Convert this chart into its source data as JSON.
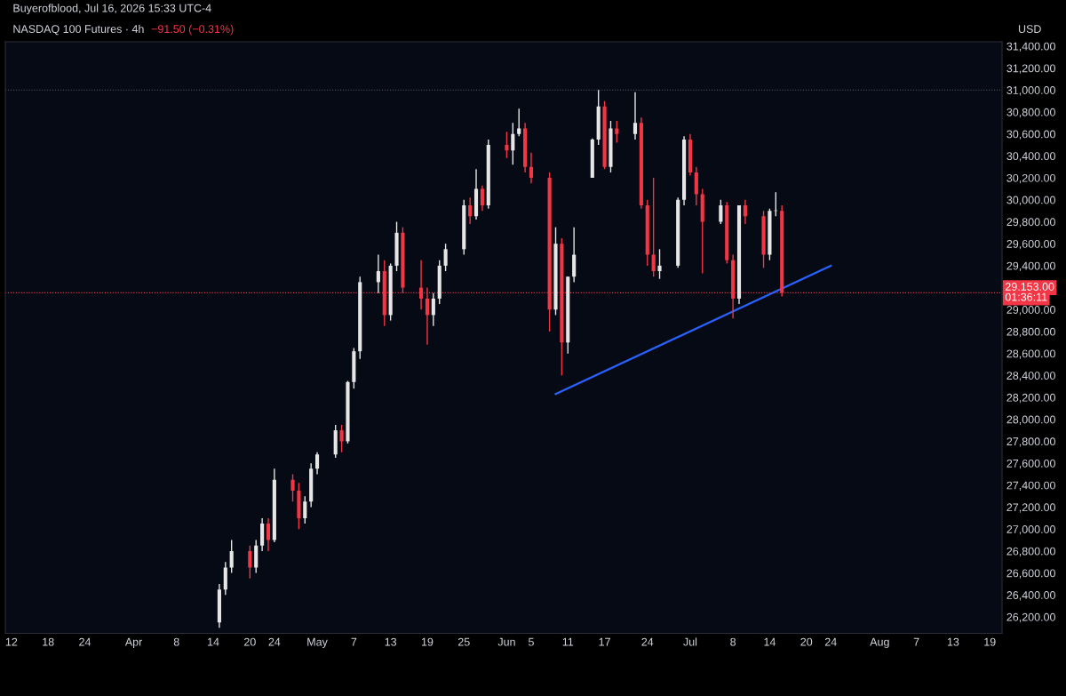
{
  "chart_data": {
    "type": "candlestick",
    "title": "NASDAQ 100 Futures · 4h",
    "subtitle": "Buyerofblood, Jul 16, 2026 15:33 UTC-4",
    "annotations": [
      "−91.50 (−0.31%)",
      "USD",
      "01:36:11"
    ],
    "x": [
      "2026-04-15",
      "2026-04-16",
      "2026-04-17",
      "2026-04-20",
      "2026-04-21",
      "2026-04-22",
      "2026-04-23",
      "2026-04-24",
      "2026-04-27",
      "2026-04-28",
      "2026-04-29",
      "2026-04-30",
      "2026-05-01",
      "2026-05-04",
      "2026-05-05",
      "2026-05-06",
      "2026-05-07",
      "2026-05-08",
      "2026-05-11",
      "2026-05-12",
      "2026-05-13",
      "2026-05-14",
      "2026-05-15",
      "2026-05-18",
      "2026-05-19",
      "2026-05-20",
      "2026-05-21",
      "2026-05-22",
      "2026-05-25",
      "2026-05-26",
      "2026-05-27",
      "2026-05-28",
      "2026-05-29",
      "2026-06-01",
      "2026-06-02",
      "2026-06-03",
      "2026-06-04",
      "2026-06-05",
      "2026-06-08",
      "2026-06-09",
      "2026-06-10",
      "2026-06-11",
      "2026-06-12",
      "2026-06-15",
      "2026-06-16",
      "2026-06-17",
      "2026-06-18",
      "2026-06-19",
      "2026-06-22",
      "2026-06-23",
      "2026-06-24",
      "2026-06-25",
      "2026-06-26",
      "2026-06-29",
      "2026-06-30",
      "2026-07-01",
      "2026-07-02",
      "2026-07-03",
      "2026-07-06",
      "2026-07-07",
      "2026-07-08",
      "2026-07-09",
      "2026-07-10",
      "2026-07-13",
      "2026-07-14",
      "2026-07-15",
      "2026-07-16"
    ],
    "ohlc": [
      [
        26150,
        26500,
        26100,
        26450
      ],
      [
        26450,
        26700,
        26400,
        26650
      ],
      [
        26650,
        26900,
        26600,
        26800
      ],
      [
        26800,
        26850,
        26550,
        26650
      ],
      [
        26650,
        26900,
        26600,
        26850
      ],
      [
        26850,
        27100,
        26800,
        27050
      ],
      [
        27050,
        27100,
        26800,
        26900
      ],
      [
        26900,
        27550,
        26880,
        27450
      ],
      [
        27450,
        27500,
        27250,
        27350
      ],
      [
        27350,
        27420,
        27000,
        27100
      ],
      [
        27100,
        27300,
        27050,
        27250
      ],
      [
        27250,
        27600,
        27200,
        27550
      ],
      [
        27550,
        27700,
        27500,
        27680
      ],
      [
        27680,
        27950,
        27650,
        27900
      ],
      [
        27900,
        27950,
        27700,
        27800
      ],
      [
        27800,
        28350,
        27780,
        28340
      ],
      [
        28340,
        28650,
        28280,
        28620
      ],
      [
        28620,
        29300,
        28550,
        29250
      ],
      [
        29250,
        29500,
        29150,
        29350
      ],
      [
        29350,
        29450,
        28850,
        28950
      ],
      [
        28950,
        29420,
        28900,
        29400
      ],
      [
        29400,
        29800,
        29350,
        29700
      ],
      [
        29700,
        29750,
        29150,
        29200
      ],
      [
        29200,
        29450,
        29000,
        29100
      ],
      [
        29100,
        29200,
        28680,
        28950
      ],
      [
        28950,
        29150,
        28850,
        29100
      ],
      [
        29100,
        29450,
        29050,
        29400
      ],
      [
        29400,
        29600,
        29350,
        29550
      ],
      [
        29550,
        30000,
        29500,
        29950
      ],
      [
        29950,
        30020,
        29780,
        29850
      ],
      [
        29850,
        30280,
        29820,
        30100
      ],
      [
        30100,
        30130,
        29900,
        29950
      ],
      [
        29950,
        30550,
        29920,
        30500
      ],
      [
        30500,
        30620,
        30380,
        30450
      ],
      [
        30450,
        30700,
        30320,
        30600
      ],
      [
        30600,
        30830,
        30580,
        30650
      ],
      [
        30650,
        30700,
        30250,
        30300
      ],
      [
        30300,
        30430,
        30150,
        30200
      ],
      [
        30200,
        30250,
        28800,
        29000
      ],
      [
        29000,
        29750,
        28950,
        29600
      ],
      [
        29600,
        29650,
        28400,
        28700
      ],
      [
        28700,
        29300,
        28600,
        29300
      ],
      [
        29300,
        29750,
        29250,
        29500
      ],
      [
        30200,
        30560,
        30200,
        30550
      ],
      [
        30550,
        31000,
        30500,
        30850
      ],
      [
        30850,
        30900,
        30280,
        30300
      ],
      [
        30300,
        30720,
        30250,
        30650
      ],
      [
        30650,
        30720,
        30520,
        30600
      ],
      [
        30600,
        30980,
        30550,
        30700
      ],
      [
        30700,
        30750,
        29920,
        29950
      ],
      [
        29950,
        30000,
        29400,
        29500
      ],
      [
        29500,
        30200,
        29300,
        29350
      ],
      [
        29350,
        29550,
        29280,
        29400
      ],
      [
        29400,
        30020,
        29380,
        30000
      ],
      [
        30000,
        30580,
        29950,
        30550
      ],
      [
        30550,
        30600,
        30220,
        30250
      ],
      [
        30250,
        30300,
        29950,
        30050
      ],
      [
        30050,
        30100,
        29330,
        29800
      ],
      [
        29800,
        30000,
        29780,
        29950
      ],
      [
        29950,
        29980,
        29420,
        29450
      ],
      [
        29450,
        29500,
        28920,
        29100
      ],
      [
        29100,
        29950,
        29050,
        29950
      ],
      [
        29950,
        30000,
        29780,
        29850
      ],
      [
        29850,
        29900,
        29380,
        29500
      ],
      [
        29500,
        29920,
        29450,
        29900
      ],
      [
        29900,
        30070,
        29850,
        29900
      ],
      [
        29900,
        29950,
        29120,
        29153
      ]
    ],
    "colors": [
      "#e6e6e6",
      "#e6e6e6",
      "#e6e6e6",
      "#f23645",
      "#e6e6e6",
      "#e6e6e6",
      "#f23645",
      "#e6e6e6",
      "#f23645",
      "#f23645",
      "#e6e6e6",
      "#e6e6e6",
      "#e6e6e6",
      "#e6e6e6",
      "#f23645",
      "#e6e6e6",
      "#e6e6e6",
      "#e6e6e6",
      "#e6e6e6",
      "#f23645",
      "#e6e6e6",
      "#e6e6e6",
      "#f23645",
      "#f23645",
      "#f23645",
      "#e6e6e6",
      "#e6e6e6",
      "#e6e6e6",
      "#e6e6e6",
      "#f23645",
      "#e6e6e6",
      "#f23645",
      "#e6e6e6",
      "#f23645",
      "#e6e6e6",
      "#e6e6e6",
      "#f23645",
      "#f23645",
      "#f23645",
      "#e6e6e6",
      "#f23645",
      "#e6e6e6",
      "#e6e6e6",
      "#e6e6e6",
      "#e6e6e6",
      "#f23645",
      "#e6e6e6",
      "#f23645",
      "#e6e6e6",
      "#f23645",
      "#f23645",
      "#f23645",
      "#e6e6e6",
      "#e6e6e6",
      "#e6e6e6",
      "#f23645",
      "#f23645",
      "#f23645",
      "#e6e6e6",
      "#f23645",
      "#f23645",
      "#e6e6e6",
      "#f23645",
      "#f23645",
      "#e6e6e6",
      "#e6e6e6",
      "#f23645"
    ],
    "series": [
      {
        "type": "line",
        "color": "#2962ff",
        "x": [
          "2026-06-09",
          "2026-07-24"
        ],
        "values": [
          28230,
          29400
        ]
      }
    ],
    "ref_lines": [
      {
        "axis": "y",
        "value": 31000,
        "label": null,
        "color": "#555a66",
        "line_style": "dotted"
      },
      {
        "axis": "y",
        "value": 29153,
        "label": "29,153.00",
        "color": "#f23645",
        "line_style": "dotted"
      }
    ],
    "xlim": [
      "2026-03-11",
      "2026-08-21"
    ],
    "xticks": [
      {
        "value": "2026-03-12",
        "label": "12"
      },
      {
        "value": "2026-03-18",
        "label": "18"
      },
      {
        "value": "2026-03-24",
        "label": "24"
      },
      {
        "value": "2026-04-01",
        "label": "Apr"
      },
      {
        "value": "2026-04-08",
        "label": "8"
      },
      {
        "value": "2026-04-14",
        "label": "14"
      },
      {
        "value": "2026-04-20",
        "label": "20"
      },
      {
        "value": "2026-04-24",
        "label": "24"
      },
      {
        "value": "2026-05-01",
        "label": "May"
      },
      {
        "value": "2026-05-07",
        "label": "7"
      },
      {
        "value": "2026-05-13",
        "label": "13"
      },
      {
        "value": "2026-05-19",
        "label": "19"
      },
      {
        "value": "2026-05-25",
        "label": "25"
      },
      {
        "value": "2026-06-01",
        "label": "Jun"
      },
      {
        "value": "2026-06-05",
        "label": "5"
      },
      {
        "value": "2026-06-11",
        "label": "11"
      },
      {
        "value": "2026-06-17",
        "label": "17"
      },
      {
        "value": "2026-06-24",
        "label": "24"
      },
      {
        "value": "2026-07-01",
        "label": "Jul"
      },
      {
        "value": "2026-07-08",
        "label": "8"
      },
      {
        "value": "2026-07-14",
        "label": "14"
      },
      {
        "value": "2026-07-20",
        "label": "20"
      },
      {
        "value": "2026-07-24",
        "label": "24"
      },
      {
        "value": "2026-08-01",
        "label": "Aug"
      },
      {
        "value": "2026-08-07",
        "label": "7"
      },
      {
        "value": "2026-08-13",
        "label": "13"
      },
      {
        "value": "2026-08-19",
        "label": "19"
      }
    ],
    "ylim": [
      26050,
      31440
    ],
    "yticks": [
      {
        "value": 26200,
        "label": "26,200.00"
      },
      {
        "value": 26400,
        "label": "26,400.00"
      },
      {
        "value": 26600,
        "label": "26,600.00"
      },
      {
        "value": 26800,
        "label": "26,800.00"
      },
      {
        "value": 27000,
        "label": "27,000.00"
      },
      {
        "value": 27200,
        "label": "27,200.00"
      },
      {
        "value": 27400,
        "label": "27,400.00"
      },
      {
        "value": 27600,
        "label": "27,600.00"
      },
      {
        "value": 27800,
        "label": "27,800.00"
      },
      {
        "value": 28000,
        "label": "28,000.00"
      },
      {
        "value": 28200,
        "label": "28,200.00"
      },
      {
        "value": 28400,
        "label": "28,400.00"
      },
      {
        "value": 28600,
        "label": "28,600.00"
      },
      {
        "value": 28800,
        "label": "28,800.00"
      },
      {
        "value": 29000,
        "label": "29,000.00"
      },
      {
        "value": 29400,
        "label": "29,400.00"
      },
      {
        "value": 29600,
        "label": "29,600.00"
      },
      {
        "value": 29800,
        "label": "29,800.00"
      },
      {
        "value": 30000,
        "label": "30,000.00"
      },
      {
        "value": 30200,
        "label": "30,200.00"
      },
      {
        "value": 30400,
        "label": "30,400.00"
      },
      {
        "value": 30600,
        "label": "30,600.00"
      },
      {
        "value": 30800,
        "label": "30,800.00"
      },
      {
        "value": 31000,
        "label": "31,000.00"
      },
      {
        "value": 31200,
        "label": "31,200.00"
      },
      {
        "value": 31400,
        "label": "31,400.00"
      }
    ],
    "grid": false
  }
}
